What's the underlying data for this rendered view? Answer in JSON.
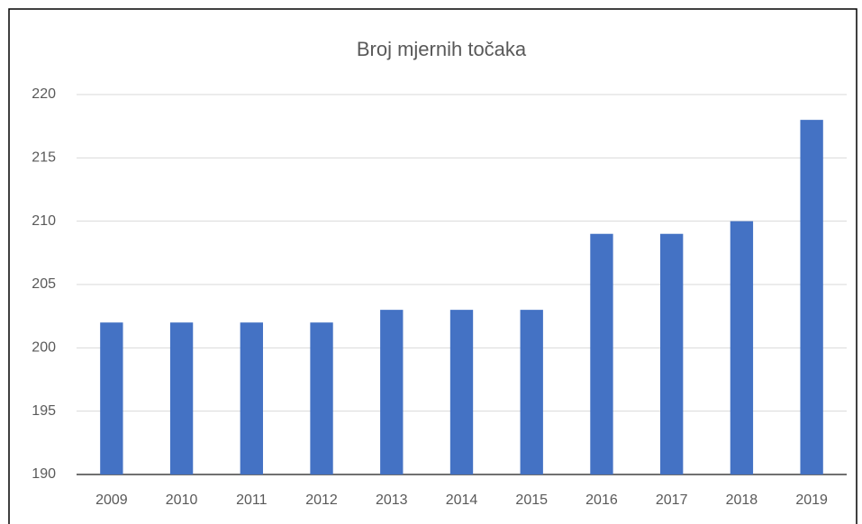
{
  "chart_data": {
    "type": "bar",
    "title": "Broj mjernih točaka",
    "categories": [
      "2009",
      "2010",
      "2011",
      "2012",
      "2013",
      "2014",
      "2015",
      "2016",
      "2017",
      "2018",
      "2019"
    ],
    "values": [
      202,
      202,
      202,
      202,
      203,
      203,
      203,
      209,
      209,
      210,
      218
    ],
    "color": "#4472c4",
    "ylim": [
      190,
      220
    ],
    "yticks": [
      190,
      195,
      200,
      205,
      210,
      215,
      220
    ],
    "grid": true
  }
}
